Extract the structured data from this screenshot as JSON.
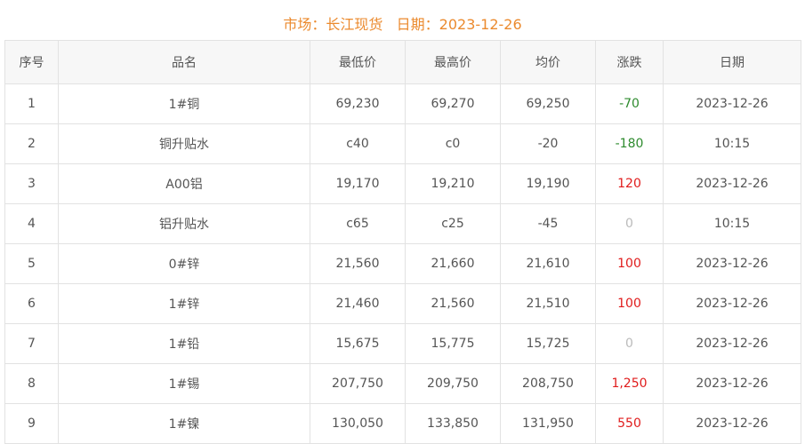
{
  "title": {
    "market_label": "市场：",
    "market": "长江现货",
    "date_label": "日期：",
    "date": "2023-12-26"
  },
  "colors": {
    "title": "#eb8a2e",
    "up": "#e01c1c",
    "down": "#2e8b2e",
    "flat": "#bbbbbb"
  },
  "headers": [
    "序号",
    "品名",
    "最低价",
    "最高价",
    "均价",
    "涨跌",
    "日期"
  ],
  "rows": [
    {
      "no": "1",
      "name": "1#铜",
      "low": "69,230",
      "high": "69,270",
      "avg": "69,250",
      "change": "-70",
      "trend": "down",
      "date": "2023-12-26"
    },
    {
      "no": "2",
      "name": "铜升贴水",
      "low": "c40",
      "high": "c0",
      "avg": "-20",
      "change": "-180",
      "trend": "down",
      "date": "10:15"
    },
    {
      "no": "3",
      "name": "A00铝",
      "low": "19,170",
      "high": "19,210",
      "avg": "19,190",
      "change": "120",
      "trend": "up",
      "date": "2023-12-26"
    },
    {
      "no": "4",
      "name": "铝升贴水",
      "low": "c65",
      "high": "c25",
      "avg": "-45",
      "change": "0",
      "trend": "flat",
      "date": "10:15"
    },
    {
      "no": "5",
      "name": "0#锌",
      "low": "21,560",
      "high": "21,660",
      "avg": "21,610",
      "change": "100",
      "trend": "up",
      "date": "2023-12-26"
    },
    {
      "no": "6",
      "name": "1#锌",
      "low": "21,460",
      "high": "21,560",
      "avg": "21,510",
      "change": "100",
      "trend": "up",
      "date": "2023-12-26"
    },
    {
      "no": "7",
      "name": "1#铅",
      "low": "15,675",
      "high": "15,775",
      "avg": "15,725",
      "change": "0",
      "trend": "flat",
      "date": "2023-12-26"
    },
    {
      "no": "8",
      "name": "1#锡",
      "low": "207,750",
      "high": "209,750",
      "avg": "208,750",
      "change": "1,250",
      "trend": "up",
      "date": "2023-12-26"
    },
    {
      "no": "9",
      "name": "1#镍",
      "low": "130,050",
      "high": "133,850",
      "avg": "131,950",
      "change": "550",
      "trend": "up",
      "date": "2023-12-26"
    }
  ]
}
